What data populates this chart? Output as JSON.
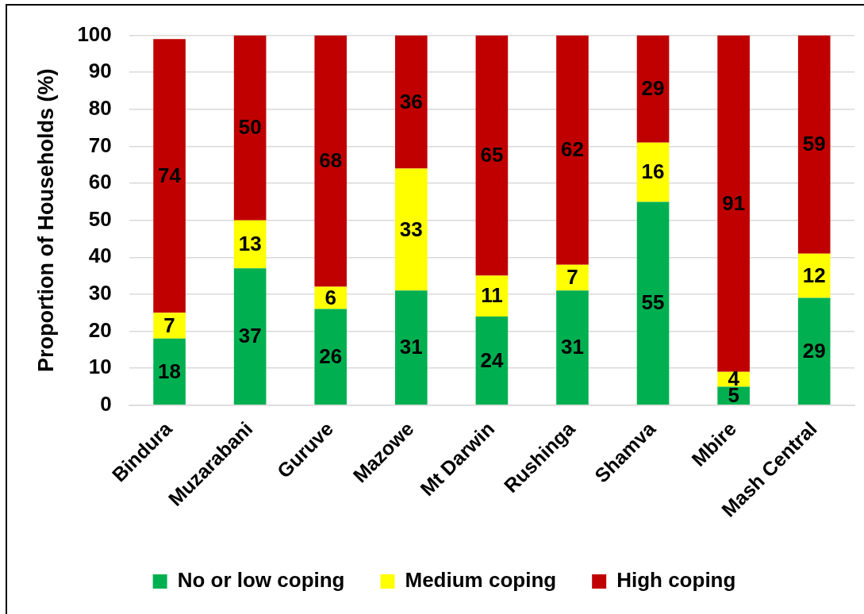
{
  "chart_data": {
    "type": "bar",
    "stacked": true,
    "ylabel": "Proportion of Households (%)",
    "categories": [
      "Bindura",
      "Muzarabani",
      "Guruve",
      "Mazowe",
      "Mt Darwin",
      "Rushinga",
      "Shamva",
      "Mbire",
      "Mash Central"
    ],
    "series": [
      {
        "name": "No or low coping",
        "color": "#00b050",
        "values": [
          18,
          37,
          26,
          31,
          24,
          31,
          55,
          5,
          29
        ]
      },
      {
        "name": "Medium coping",
        "color": "#ffff00",
        "values": [
          7,
          13,
          6,
          33,
          11,
          7,
          16,
          4,
          12
        ]
      },
      {
        "name": "High coping",
        "color": "#c00000",
        "values": [
          74,
          50,
          68,
          36,
          65,
          62,
          29,
          91,
          59
        ]
      }
    ],
    "ylim": [
      0,
      100
    ],
    "yticks": [
      0,
      10,
      20,
      30,
      40,
      50,
      60,
      70,
      80,
      90,
      100
    ],
    "grid": "y",
    "legend": "bottom",
    "data_labels": true
  }
}
